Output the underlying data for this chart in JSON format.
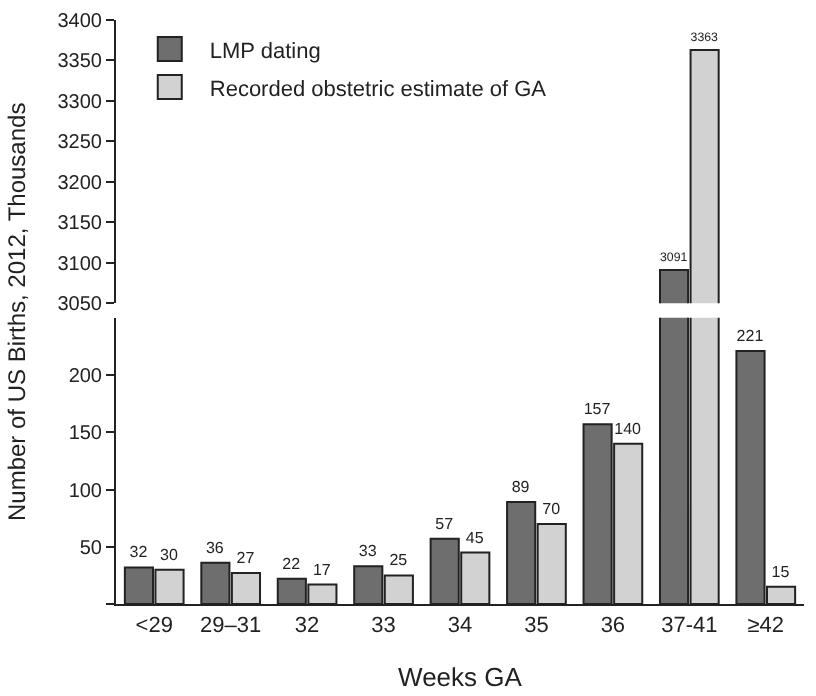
{
  "chart_data": [
    {
      "type": "bar",
      "ylim": [
        3050,
        3400
      ],
      "yticks": [
        3050,
        3100,
        3150,
        3200,
        3250,
        3300,
        3350,
        3400
      ],
      "tick_labels": "y",
      "legend": "top left",
      "series": [
        {
          "name": "LMP dating",
          "color": "#6e6e6e",
          "values": [
            null,
            null,
            null,
            null,
            null,
            null,
            null,
            3091,
            null
          ],
          "value_labels": [
            null,
            null,
            null,
            null,
            null,
            null,
            null,
            "3091",
            null
          ]
        },
        {
          "name": "Recorded obstetric estimate of GA",
          "color": "#d2d2d2",
          "values": [
            null,
            null,
            null,
            null,
            null,
            null,
            null,
            3363,
            null
          ],
          "value_labels": [
            null,
            null,
            null,
            null,
            null,
            null,
            null,
            "3363",
            null
          ]
        }
      ]
    },
    {
      "type": "bar",
      "categories": [
        "<29",
        "29–31",
        "32",
        "33",
        "34",
        "35",
        "36",
        "37-41",
        "≥42"
      ],
      "ylim": [
        0,
        250
      ],
      "yticks": [
        {
          "value": 0,
          "label": null
        },
        50,
        100,
        150,
        200
      ],
      "xlabel": "Weeks GA",
      "ylabel": "Number of US Births, 2012, Thousands",
      "series": [
        {
          "color": "#6e6e6e",
          "values": [
            32,
            36,
            22,
            33,
            57,
            89,
            157,
            null,
            221
          ],
          "value_labels": [
            "32",
            "36",
            "22",
            "33",
            "57",
            "89",
            "157",
            null,
            "221"
          ]
        },
        {
          "color": "#d2d2d2",
          "values": [
            30,
            27,
            17,
            25,
            45,
            70,
            140,
            null,
            15
          ],
          "value_labels": [
            "30",
            "27",
            "17",
            "25",
            "45",
            "70",
            "140",
            null,
            "15"
          ]
        }
      ]
    }
  ]
}
